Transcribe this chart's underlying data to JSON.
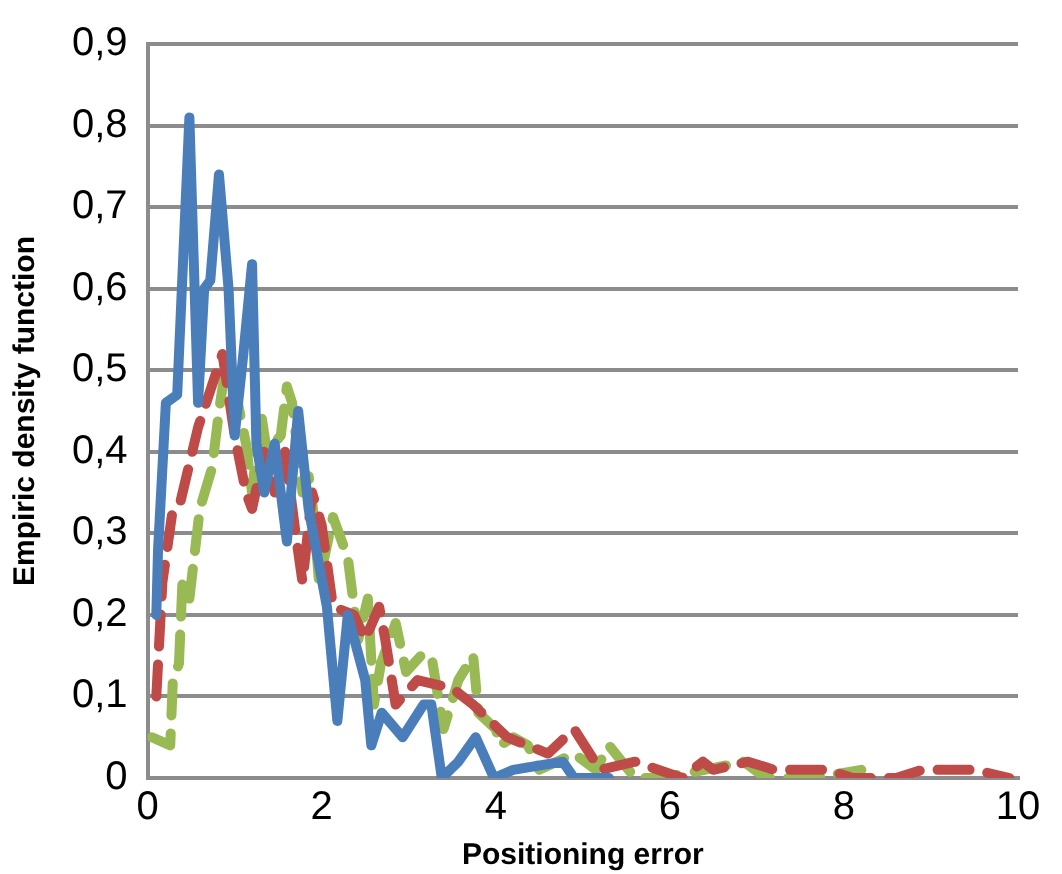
{
  "chart_data": {
    "type": "line",
    "xlabel": "Positioning error",
    "ylabel": "Empiric density function",
    "xlim": [
      0,
      10
    ],
    "xticks": [
      0,
      2,
      4,
      6,
      8,
      10
    ],
    "ylim": [
      0,
      0.9
    ],
    "yticks": [
      {
        "value": 0,
        "label": "0"
      },
      {
        "value": 0.1,
        "label": "0,1"
      },
      {
        "value": 0.2,
        "label": "0,2"
      },
      {
        "value": 0.3,
        "label": "0,3"
      },
      {
        "value": 0.4,
        "label": "0,4"
      },
      {
        "value": 0.5,
        "label": "0,5"
      },
      {
        "value": 0.6,
        "label": "0,6"
      },
      {
        "value": 0.7,
        "label": "0,7"
      },
      {
        "value": 0.8,
        "label": "0,8"
      },
      {
        "value": 0.9,
        "label": "0,9"
      }
    ],
    "grid": "y",
    "legend": false,
    "marker": "none",
    "series": [
      {
        "color": "#4a7ebb",
        "line_style": "solid",
        "x": [
          0.1,
          0.12,
          0.21,
          0.34,
          0.48,
          0.58,
          0.65,
          0.72,
          0.82,
          0.93,
          1.0,
          1.1,
          1.2,
          1.25,
          1.34,
          1.46,
          1.6,
          1.73,
          1.85,
          2.06,
          2.18,
          2.3,
          2.5,
          2.57,
          2.69,
          2.93,
          3.17,
          3.26,
          3.38,
          3.57,
          3.77,
          3.98,
          4.2,
          4.77,
          4.9,
          5.3
        ],
        "values": [
          0.2,
          0.28,
          0.46,
          0.47,
          0.81,
          0.46,
          0.6,
          0.61,
          0.74,
          0.6,
          0.42,
          0.52,
          0.63,
          0.41,
          0.35,
          0.41,
          0.29,
          0.45,
          0.33,
          0.21,
          0.07,
          0.2,
          0.12,
          0.04,
          0.08,
          0.05,
          0.09,
          0.09,
          0,
          0.02,
          0.05,
          0,
          0.01,
          0.02,
          0,
          0
        ]
      },
      {
        "color": "#be4b48",
        "line_style": "dashed",
        "x": [
          0.1,
          0.17,
          0.29,
          0.38,
          0.58,
          0.86,
          1.0,
          1.13,
          1.2,
          1.34,
          1.46,
          1.58,
          1.7,
          1.78,
          1.89,
          2.0,
          2.13,
          2.37,
          2.5,
          2.66,
          2.73,
          2.85,
          3.1,
          3.5,
          3.74,
          4.13,
          4.6,
          4.9,
          5.2,
          5.6,
          6.14,
          6.38,
          6.5,
          6.9,
          7.2,
          7.8,
          8.1,
          8.6,
          8.9,
          9.5,
          9.9
        ],
        "values": [
          0.1,
          0.24,
          0.33,
          0.34,
          0.43,
          0.52,
          0.42,
          0.35,
          0.33,
          0.4,
          0.35,
          0.4,
          0.3,
          0.24,
          0.35,
          0.31,
          0.21,
          0.2,
          0.17,
          0.21,
          0.17,
          0.09,
          0.12,
          0.11,
          0.09,
          0.05,
          0.03,
          0.06,
          0.01,
          0.02,
          0,
          0.02,
          0.01,
          0.02,
          0.01,
          0.01,
          0,
          0,
          0.01,
          0.01,
          0
        ]
      },
      {
        "color": "#98b954",
        "line_style": "dashed",
        "x": [
          0.05,
          0.26,
          0.29,
          0.36,
          0.4,
          0.48,
          0.6,
          0.74,
          0.82,
          0.89,
          1.0,
          1.13,
          1.2,
          1.3,
          1.37,
          1.53,
          1.6,
          1.66,
          1.78,
          1.85,
          1.9,
          1.97,
          2.13,
          2.3,
          2.42,
          2.53,
          2.6,
          2.68,
          2.85,
          2.97,
          3.14,
          3.26,
          3.4,
          3.57,
          3.74,
          3.8,
          4.0,
          4.05,
          4.2,
          4.37,
          4.5,
          4.7,
          4.9,
          5.15,
          5.3,
          5.6,
          5.9,
          6.4,
          6.85,
          7.1,
          7.65,
          8.2
        ],
        "values": [
          0.05,
          0.04,
          0.12,
          0.14,
          0.24,
          0.22,
          0.33,
          0.38,
          0.45,
          0.5,
          0.48,
          0.41,
          0.35,
          0.45,
          0.4,
          0.42,
          0.48,
          0.46,
          0.35,
          0.37,
          0.33,
          0.24,
          0.32,
          0.27,
          0.17,
          0.22,
          0.09,
          0.14,
          0.19,
          0.13,
          0.15,
          0.15,
          0.06,
          0.12,
          0.15,
          0.08,
          0.06,
          0.04,
          0.05,
          0.04,
          0.01,
          0.02,
          0.03,
          0.01,
          0.04,
          0,
          0,
          0.01,
          0.02,
          0,
          0,
          0.01
        ]
      }
    ]
  }
}
